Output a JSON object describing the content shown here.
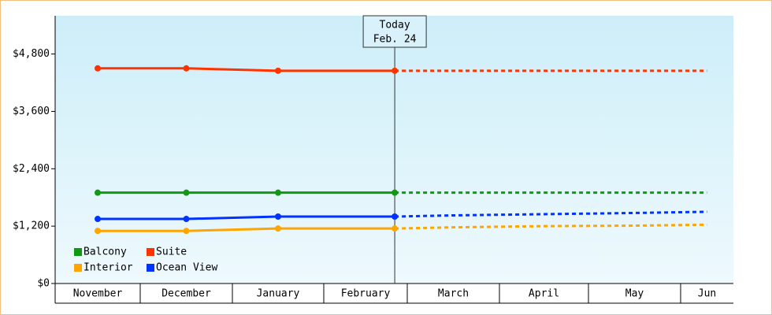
{
  "chart_data": {
    "type": "line",
    "categories": [
      "November",
      "December",
      "January",
      "February",
      "March",
      "April",
      "May",
      "Jun"
    ],
    "series": [
      {
        "name": "Balcony",
        "color": "#119911",
        "values": [
          1900,
          1900,
          1900,
          1900,
          1900,
          1900,
          1900,
          1900
        ]
      },
      {
        "name": "Suite",
        "color": "#ff3300",
        "values": [
          4500,
          4500,
          4450,
          4450,
          4450,
          4450,
          4450,
          4450
        ]
      },
      {
        "name": "Interior",
        "color": "#ffa500",
        "values": [
          1100,
          1100,
          1150,
          1150,
          1175,
          1200,
          1210,
          1230
        ]
      },
      {
        "name": "Ocean View",
        "color": "#0033ff",
        "values": [
          1350,
          1350,
          1400,
          1400,
          1425,
          1450,
          1475,
          1500
        ]
      }
    ],
    "annotation": [
      "Today",
      "Feb. 24"
    ],
    "ylim": [
      0,
      5600
    ],
    "yticks": [
      {
        "value": 0,
        "label": "$0"
      },
      {
        "value": 1200,
        "label": "$1,200"
      },
      {
        "value": 2400,
        "label": "$2,400"
      },
      {
        "value": 3600,
        "label": "$3,600"
      },
      {
        "value": 4800,
        "label": "$4,800"
      }
    ],
    "legend": "bottom-left"
  }
}
